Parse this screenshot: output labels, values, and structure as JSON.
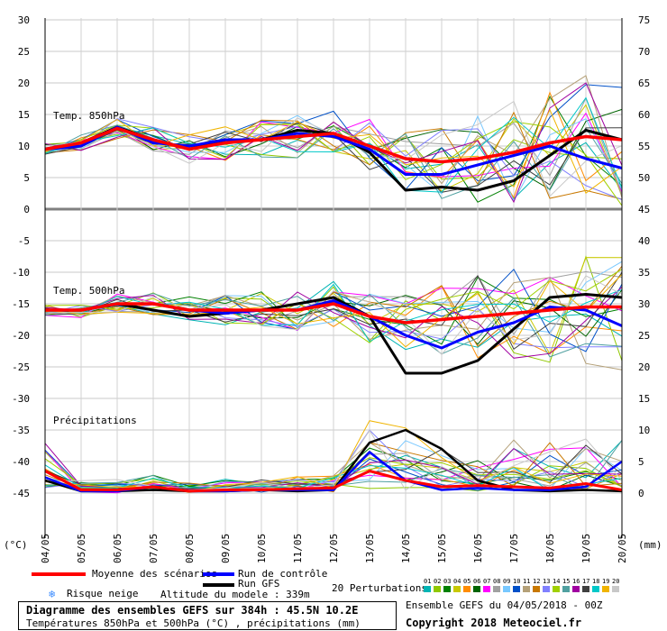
{
  "left_axis_ticks": [
    "30",
    "25",
    "20",
    "15",
    "10",
    "5",
    "0",
    "-5",
    "-10",
    "-15",
    "-20",
    "-25",
    "-30",
    "-35",
    "-40",
    "-45"
  ],
  "right_axis_ticks": [
    "75",
    "70",
    "65",
    "60",
    "55",
    "50",
    "45",
    "40",
    "35",
    "30",
    "25",
    "20",
    "15",
    "10",
    "5",
    "0"
  ],
  "x_labels": [
    "04/05",
    "05/05",
    "06/05",
    "07/05",
    "08/05",
    "09/05",
    "10/05",
    "11/05",
    "12/05",
    "13/05",
    "14/05",
    "15/05",
    "16/05",
    "17/05",
    "18/05",
    "19/05",
    "20/05"
  ],
  "unit_left": "(°C)",
  "unit_right": "(mm)",
  "panel_labels": {
    "t850": "Temp. 850hPa",
    "t500": "Temp. 500hPa",
    "precip": "Précipitations"
  },
  "legend": {
    "mean": "Moyenne des scénarios",
    "control": "Run de contrôle",
    "gfs": "Run GFS",
    "snow": "Risque neige",
    "altitude": "Altitude du modele : 339m",
    "perturbations": "20 Perturbations",
    "pert_numbers": [
      "01",
      "02",
      "03",
      "04",
      "05",
      "06",
      "07",
      "08",
      "09",
      "10",
      "11",
      "12",
      "13",
      "14",
      "15",
      "16",
      "17",
      "18",
      "19",
      "20"
    ]
  },
  "colors": {
    "mean": "#ff0000",
    "control": "#0000ff",
    "gfs": "#000000",
    "perturbations": [
      "#00b4b4",
      "#90c800",
      "#008000",
      "#c8c800",
      "#ff8c00",
      "#006400",
      "#ff00ff",
      "#a0a0a0",
      "#78c8ff",
      "#0050c8",
      "#b4a078",
      "#c87800",
      "#8080ff",
      "#a0d000",
      "#50a0a0",
      "#a000a0",
      "#404040",
      "#00c8c8",
      "#f0b400",
      "#c8c8c8"
    ]
  },
  "info": {
    "title": "Diagramme des ensembles GEFS sur 384h : 45.5N 10.2E",
    "subtitle": "Températures 850hPa et 500hPa (°C) , précipitations (mm)",
    "run": "Ensemble GEFS du 04/05/2018 - 00Z",
    "copyright": "Copyright 2018 Meteociel.fr"
  },
  "chart_data": {
    "type": "line",
    "x_dates": [
      "04/05",
      "05/05",
      "06/05",
      "07/05",
      "08/05",
      "09/05",
      "10/05",
      "11/05",
      "12/05",
      "13/05",
      "14/05",
      "15/05",
      "16/05",
      "17/05",
      "18/05",
      "19/05",
      "20/05"
    ],
    "left_ylim": [
      -45,
      30
    ],
    "right_ylim": [
      0,
      75
    ],
    "temp850": {
      "mean": [
        9.5,
        10.5,
        12.8,
        11,
        9.5,
        10.5,
        11,
        11.5,
        12,
        10,
        8,
        7.5,
        8,
        9,
        10.5,
        11.5,
        11
      ],
      "control": [
        9.5,
        10,
        13,
        10.5,
        10,
        11,
        11,
        12,
        11.5,
        9.5,
        5.5,
        5.5,
        7,
        8.5,
        10,
        8,
        6.5
      ],
      "gfs": [
        9.5,
        10.5,
        13,
        11,
        9.5,
        11,
        11,
        12.5,
        12,
        9,
        3,
        3.5,
        3,
        4.5,
        8.5,
        12.5,
        11
      ]
    },
    "temp500": {
      "mean": [
        -16,
        -16,
        -15,
        -15,
        -16,
        -16,
        -16,
        -16,
        -15,
        -17,
        -18,
        -17.5,
        -17,
        -16.5,
        -16,
        -15.5,
        -15.5
      ],
      "control": [
        -16,
        -16,
        -15,
        -15,
        -16,
        -16.5,
        -16,
        -16,
        -14.5,
        -17,
        -20,
        -22,
        -19.5,
        -18,
        -15.5,
        -16,
        -18.5
      ],
      "gfs": [
        -16,
        -16,
        -15,
        -16,
        -17,
        -16.5,
        -16,
        -15,
        -14,
        -17,
        -26,
        -26,
        -24,
        -19,
        -14,
        -13.5,
        -14
      ]
    },
    "precip_mm": {
      "mean": [
        3.5,
        0.5,
        0.5,
        1.0,
        0.3,
        0.5,
        0.5,
        0.7,
        0.8,
        3.5,
        2.0,
        1.0,
        1.2,
        1.0,
        0.8,
        1.5,
        0.5
      ],
      "control": [
        2.5,
        0.3,
        0.3,
        1.0,
        0.3,
        0.3,
        0.5,
        0.5,
        0.5,
        6.5,
        2.0,
        0.5,
        0.8,
        0.5,
        0.5,
        1.0,
        5.0
      ],
      "gfs": [
        2.0,
        0.3,
        0.3,
        0.5,
        0.3,
        0.3,
        0.5,
        0.3,
        0.5,
        8.0,
        10.0,
        7.0,
        2.0,
        0.5,
        0.3,
        0.5,
        0.3
      ]
    },
    "grid": true
  }
}
